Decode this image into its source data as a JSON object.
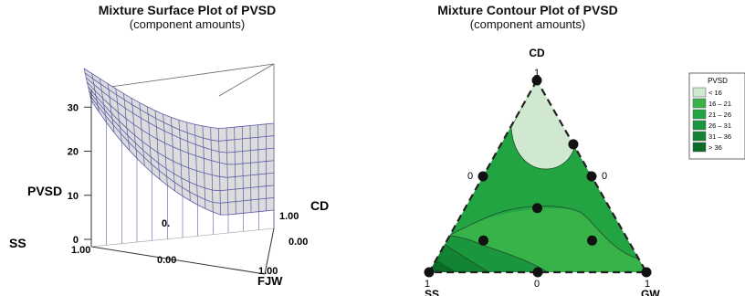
{
  "colors": {
    "mesh_line": "#5a5aa8",
    "mesh_fill": "#dcdcdc",
    "legend_bins": [
      "#cfe8cf",
      "#37b34a",
      "#23a443",
      "#1a963c",
      "#138532",
      "#0b6a26"
    ]
  },
  "chart_data": [
    {
      "type": "surface",
      "title": "Mixture Surface Plot of PVSD",
      "subtitle": "(component amounts)",
      "zlabel": "PVSD",
      "z_ticks": [
        "0",
        "10",
        "20",
        "30"
      ],
      "zlim": [
        0,
        34
      ],
      "corner_labels": {
        "ss": "SS",
        "cd": "CD",
        "fjw": "FJW"
      },
      "edge_ticks": {
        "ss_max": "1.00",
        "front_mid": "0.00",
        "fjw_max": "1.00",
        "cd_max": "1.00",
        "right_mid": "0.00",
        "hidden": "0."
      },
      "grid": true
    },
    {
      "type": "contour",
      "title": "Mixture Contour Plot of PVSD",
      "subtitle": "(component amounts)",
      "vertex_labels": {
        "top": "CD",
        "left": "SS",
        "right": "GW"
      },
      "vertex_values": {
        "top": "1",
        "left": "1",
        "right": "1",
        "left_mid": "0",
        "right_mid": "0",
        "bottom_mid": "0"
      },
      "design_points": [
        {
          "SS": 0,
          "CD": 1,
          "GW": 0
        },
        {
          "SS": 0,
          "CD": 0.667,
          "GW": 0.333
        },
        {
          "SS": 0.5,
          "CD": 0.5,
          "GW": 0
        },
        {
          "SS": 0,
          "CD": 0.5,
          "GW": 0.5
        },
        {
          "SS": 0.333,
          "CD": 0.333,
          "GW": 0.333
        },
        {
          "SS": 0.667,
          "CD": 0.167,
          "GW": 0.167
        },
        {
          "SS": 0.167,
          "CD": 0.167,
          "GW": 0.667
        },
        {
          "SS": 1,
          "CD": 0,
          "GW": 0
        },
        {
          "SS": 0.5,
          "CD": 0,
          "GW": 0.5
        },
        {
          "SS": 0,
          "CD": 0,
          "GW": 1
        }
      ],
      "legend": {
        "title": "PVSD",
        "entries": [
          "<  16",
          "16  –  21",
          "21  –  26",
          "26  –  31",
          "31  –  36",
          ">  36"
        ]
      }
    }
  ]
}
